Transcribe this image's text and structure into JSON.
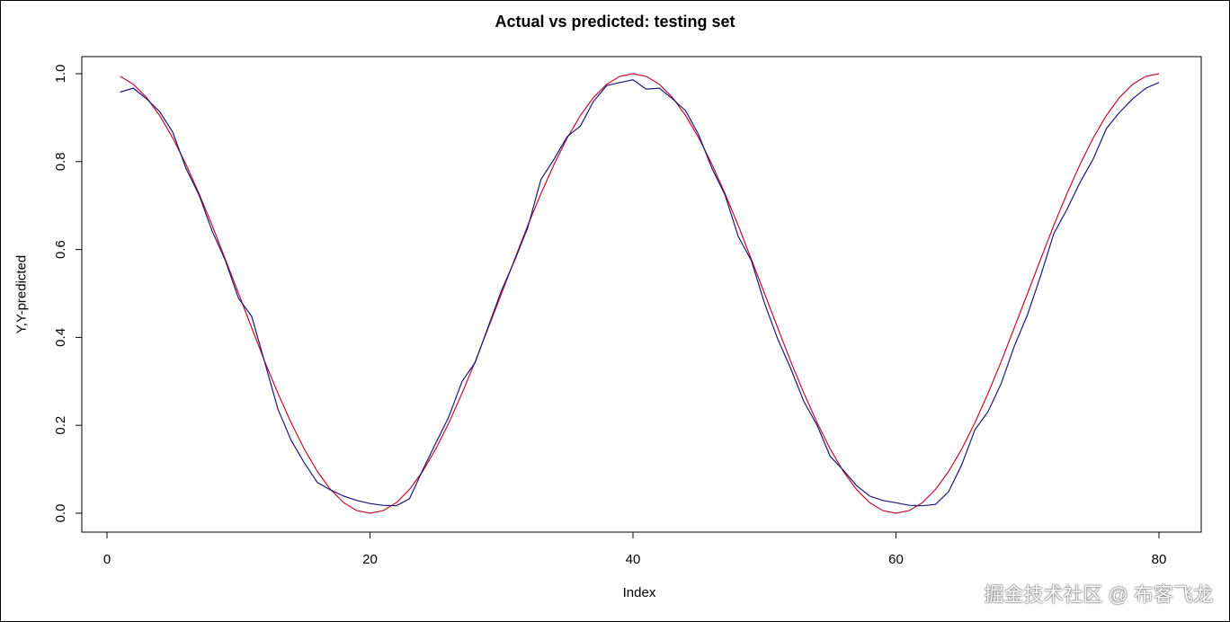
{
  "chart_data": {
    "type": "line",
    "title": "Actual vs predicted: testing set",
    "xlabel": "Index",
    "ylabel": "Y,Y-predicted",
    "xlim": [
      0,
      83
    ],
    "ylim": [
      -0.04,
      1.04
    ],
    "xticks": [
      0,
      20,
      40,
      60,
      80
    ],
    "yticks": [
      "0.0",
      "0.2",
      "0.4",
      "0.6",
      "0.8",
      "1.0"
    ],
    "grid": false,
    "x_start": 1,
    "series": [
      {
        "color": "#c01030",
        "values": [
          0.994,
          0.976,
          0.946,
          0.905,
          0.854,
          0.794,
          0.727,
          0.655,
          0.578,
          0.5,
          0.422,
          0.345,
          0.273,
          0.206,
          0.146,
          0.095,
          0.054,
          0.024,
          0.006,
          0,
          0.006,
          0.024,
          0.054,
          0.095,
          0.146,
          0.206,
          0.273,
          0.345,
          0.422,
          0.5,
          0.578,
          0.655,
          0.727,
          0.794,
          0.854,
          0.905,
          0.946,
          0.976,
          0.994,
          1,
          0.994,
          0.976,
          0.946,
          0.905,
          0.854,
          0.794,
          0.727,
          0.655,
          0.578,
          0.5,
          0.422,
          0.345,
          0.273,
          0.206,
          0.146,
          0.095,
          0.054,
          0.024,
          0.006,
          0,
          0.006,
          0.024,
          0.054,
          0.095,
          0.146,
          0.206,
          0.273,
          0.345,
          0.422,
          0.5,
          0.578,
          0.655,
          0.727,
          0.794,
          0.854,
          0.905,
          0.946,
          0.976,
          0.994,
          1
        ]
      },
      {
        "color": "#1a1a78",
        "values": [
          0.958,
          0.967,
          0.943,
          0.914,
          0.867,
          0.785,
          0.724,
          0.642,
          0.575,
          0.489,
          0.448,
          0.343,
          0.237,
          0.166,
          0.115,
          0.07,
          0.053,
          0.039,
          0.029,
          0.022,
          0.018,
          0.017,
          0.033,
          0.098,
          0.159,
          0.22,
          0.3,
          0.343,
          0.425,
          0.507,
          0.575,
          0.65,
          0.759,
          0.806,
          0.857,
          0.881,
          0.937,
          0.973,
          0.98,
          0.986,
          0.965,
          0.967,
          0.943,
          0.916,
          0.861,
          0.785,
          0.724,
          0.63,
          0.575,
          0.478,
          0.397,
          0.329,
          0.254,
          0.2,
          0.129,
          0.098,
          0.063,
          0.039,
          0.029,
          0.024,
          0.018,
          0.017,
          0.02,
          0.049,
          0.11,
          0.19,
          0.231,
          0.295,
          0.38,
          0.452,
          0.54,
          0.636,
          0.691,
          0.753,
          0.806,
          0.875,
          0.912,
          0.943,
          0.967,
          0.98
        ]
      }
    ]
  },
  "watermark": "掘金技术社区 @ 布客飞龙"
}
